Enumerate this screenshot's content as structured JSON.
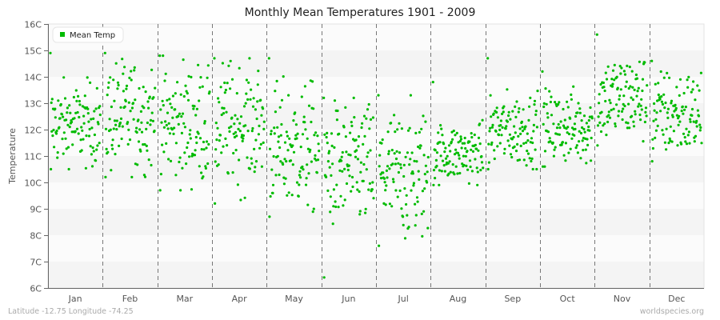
{
  "chart_data": {
    "type": "scatter",
    "title": "Monthly Mean Temperatures 1901 - 2009",
    "xlabel": "",
    "ylabel": "Temperature",
    "ylim": [
      6,
      16
    ],
    "y_ticks": [
      "6C",
      "7C",
      "8C",
      "9C",
      "10C",
      "11C",
      "12C",
      "13C",
      "14C",
      "15C",
      "16C"
    ],
    "categories": [
      "Jan",
      "Feb",
      "Mar",
      "Apr",
      "May",
      "Jun",
      "Jul",
      "Aug",
      "Sep",
      "Oct",
      "Nov",
      "Dec"
    ],
    "legend": {
      "entries": [
        "Mean Temp"
      ],
      "position": "top-left"
    },
    "grid": {
      "horizontal_bands": true,
      "vertical_month_separators": "dashed"
    },
    "series": [
      {
        "name": "Mean Temp",
        "color": "#00bb00",
        "points_per_month": 109,
        "monthly_summary": [
          {
            "month": "Jan",
            "min": 10.5,
            "max": 14.9,
            "typical": 12.2
          },
          {
            "month": "Feb",
            "min": 10.2,
            "max": 14.9,
            "typical": 12.5
          },
          {
            "month": "Mar",
            "min": 9.7,
            "max": 14.8,
            "typical": 12.2
          },
          {
            "month": "Apr",
            "min": 9.2,
            "max": 14.7,
            "typical": 12.2
          },
          {
            "month": "May",
            "min": 8.7,
            "max": 14.7,
            "typical": 11.3
          },
          {
            "month": "Jun",
            "min": 6.4,
            "max": 13.2,
            "typical": 10.6
          },
          {
            "month": "Jul",
            "min": 7.6,
            "max": 13.3,
            "typical": 10.3
          },
          {
            "month": "Aug",
            "min": 9.9,
            "max": 13.8,
            "typical": 11.1
          },
          {
            "month": "Sep",
            "min": 10.5,
            "max": 14.7,
            "typical": 12.0
          },
          {
            "month": "Oct",
            "min": 10.6,
            "max": 14.2,
            "typical": 12.1
          },
          {
            "month": "Nov",
            "min": 11.4,
            "max": 15.6,
            "typical": 13.2
          },
          {
            "month": "Dec",
            "min": 10.8,
            "max": 14.6,
            "typical": 12.6
          }
        ]
      }
    ]
  },
  "header": {
    "title": "Monthly Mean Temperatures 1901 - 2009"
  },
  "legend": {
    "label": "Mean Temp",
    "color": "#00bb00"
  },
  "axes": {
    "y_title": "Temperature"
  },
  "footer": {
    "location": "Latitude -12.75 Longitude -74.25",
    "source": "worldspecies.org"
  }
}
